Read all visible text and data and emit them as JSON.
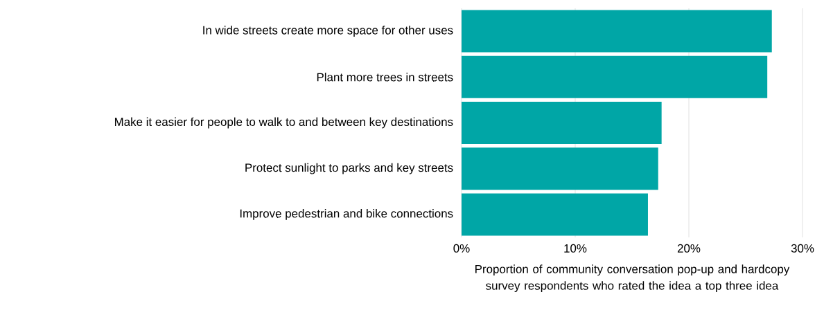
{
  "chart_data": {
    "type": "bar",
    "orientation": "horizontal",
    "categories": [
      "In wide streets create more space for other uses",
      "Plant more trees in streets",
      "Make it easier for people to walk to and between key destinations",
      "Protect sunlight to parks and key streets",
      "Improve pedestrian and bike connections"
    ],
    "values": [
      27.3,
      26.9,
      17.6,
      17.3,
      16.4
    ],
    "color": "#00a6a6",
    "xlabel": "Proportion of community conversation pop-up and hardcopy survey respondents who rated the idea a top three idea",
    "xlim": [
      0,
      30
    ],
    "xticks": [
      {
        "value": 0,
        "label": "0%"
      },
      {
        "value": 10,
        "label": "10%"
      },
      {
        "value": 20,
        "label": "20%"
      },
      {
        "value": 30,
        "label": "30%"
      }
    ],
    "grid": "x"
  }
}
